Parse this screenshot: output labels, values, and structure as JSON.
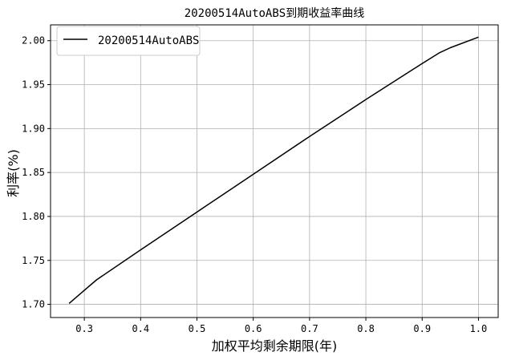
{
  "chart_data": {
    "type": "line",
    "title": "20200514AutoABS到期收益率曲线",
    "xlabel": "加权平均剩余期限(年)",
    "ylabel": "利率(%)",
    "xlim": [
      0.24,
      1.035
    ],
    "ylim": [
      1.685,
      2.018
    ],
    "xticks": [
      0.3,
      0.4,
      0.5,
      0.6,
      0.7,
      0.8,
      0.9,
      1.0
    ],
    "xtick_labels": [
      "0.3",
      "0.4",
      "0.5",
      "0.6",
      "0.7",
      "0.8",
      "0.9",
      "1.0"
    ],
    "yticks": [
      1.7,
      1.75,
      1.8,
      1.85,
      1.9,
      1.95,
      2.0
    ],
    "ytick_labels": [
      "1.70",
      "1.75",
      "1.80",
      "1.85",
      "1.90",
      "1.95",
      "2.00"
    ],
    "grid": true,
    "legend_position": "top-left",
    "series": [
      {
        "name": "20200514AutoABS",
        "color": "#000000",
        "x": [
          0.273,
          0.3,
          0.322,
          0.4,
          0.5,
          0.6,
          0.7,
          0.8,
          0.9,
          0.93,
          0.95,
          1.0
        ],
        "y": [
          1.701,
          1.716,
          1.728,
          1.762,
          1.805,
          1.848,
          1.891,
          1.933,
          1.974,
          1.986,
          1.992,
          2.004
        ]
      }
    ]
  }
}
